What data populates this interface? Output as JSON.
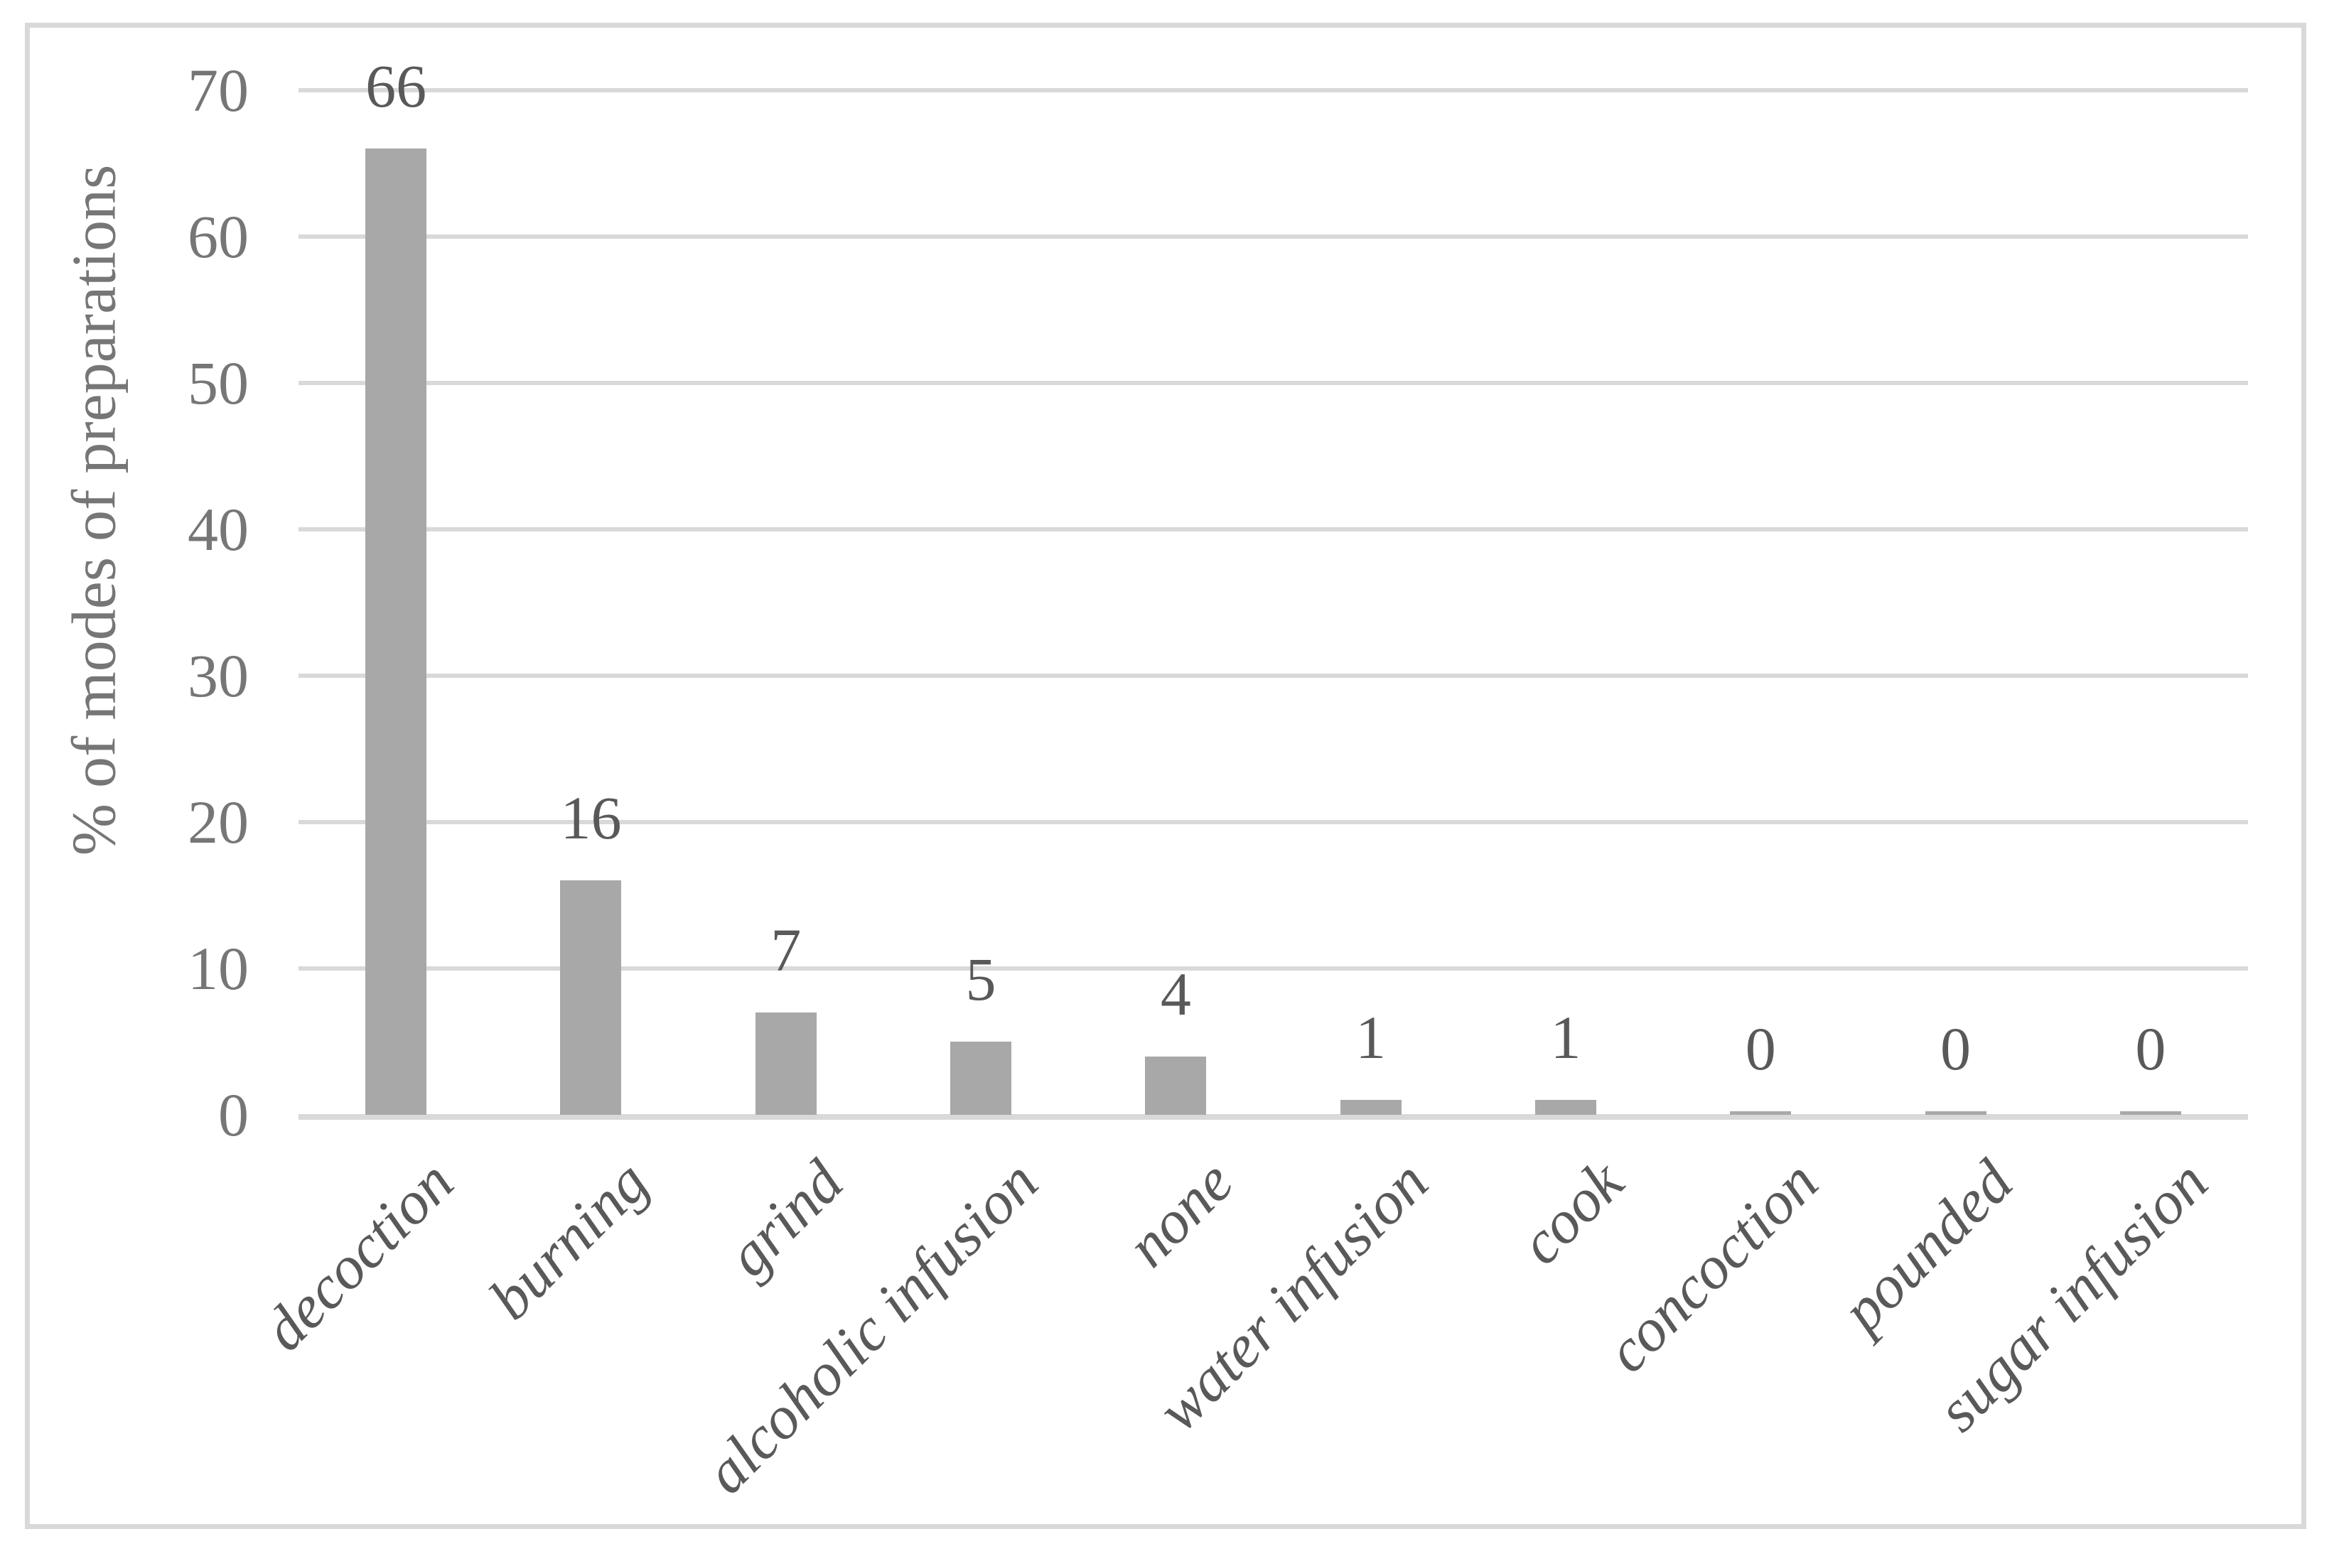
{
  "chart_data": {
    "type": "bar",
    "title": "",
    "xlabel": "",
    "ylabel": "% of modes of preparations",
    "categories": [
      "decoction",
      "burning",
      "grind",
      "alcoholic infusion",
      "none",
      "water infusion",
      "cook",
      "concoction",
      "pounded",
      "sugar infusion"
    ],
    "values": [
      66,
      16,
      7,
      5,
      4,
      1,
      1,
      0,
      0,
      0
    ],
    "data_labels": [
      "66",
      "16",
      "7",
      "5",
      "4",
      "1",
      "1",
      "0",
      "0",
      "0"
    ],
    "yticks": [
      0,
      10,
      20,
      30,
      40,
      50,
      60,
      70
    ],
    "ylim": [
      0,
      70
    ],
    "grid": true,
    "legend": false,
    "bar_color": "#a8a8a8",
    "gridline_color": "#d9d9d9",
    "frame_color": "#d9d9d9",
    "tick_text_color": "#767676",
    "label_text_color": "#595959"
  }
}
